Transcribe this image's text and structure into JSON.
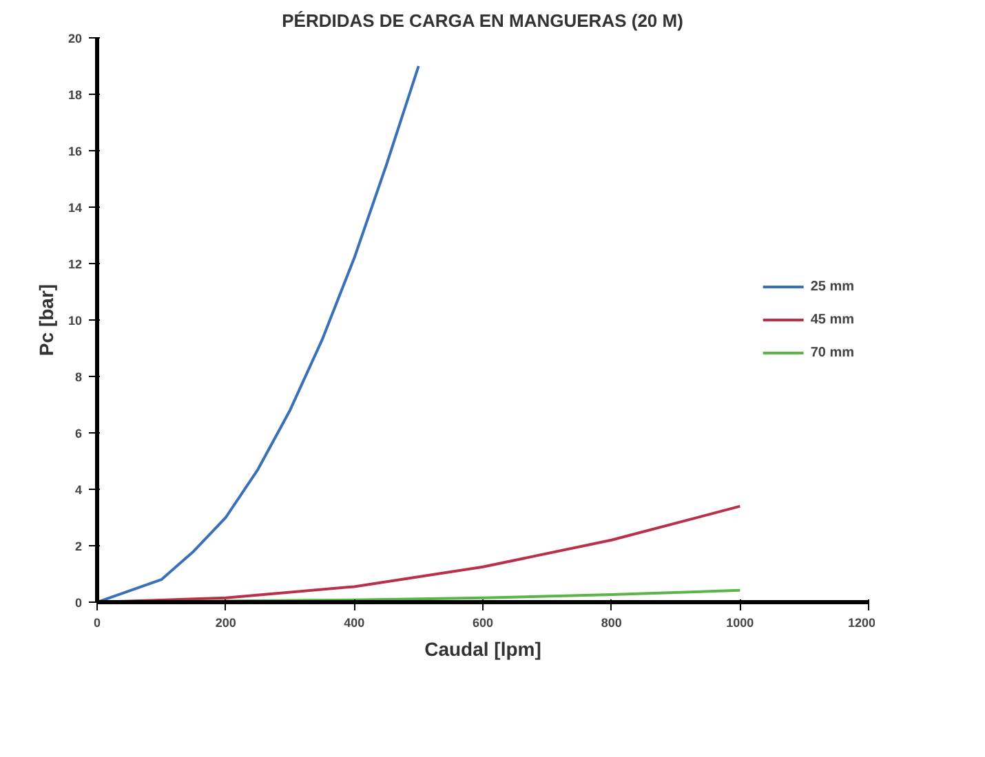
{
  "chart_data": {
    "type": "line",
    "title": "PÉRDIDAS DE CARGA EN MANGUERAS (20 M)",
    "xlabel": "Caudal [lpm]",
    "ylabel": "Pc [bar]",
    "xlim": [
      0,
      1200
    ],
    "xticks": [
      0,
      200,
      400,
      600,
      800,
      1000,
      1200
    ],
    "ylim": [
      0,
      20
    ],
    "yticks": [
      0,
      2,
      4,
      6,
      8,
      10,
      12,
      14,
      16,
      18,
      20
    ],
    "grid": false,
    "legend": "right",
    "marker": "none",
    "line_style": "solid",
    "series": [
      {
        "name": "25 mm",
        "color": "#3a70b8",
        "x": [
          0,
          50,
          100,
          150,
          200,
          250,
          300,
          350,
          400,
          450,
          500
        ],
        "values": [
          0,
          0.4,
          0.8,
          1.8,
          3.0,
          4.7,
          6.8,
          9.3,
          12.2,
          15.5,
          19.0
        ]
      },
      {
        "name": "45 mm",
        "color": "#b8304a",
        "x": [
          0,
          200,
          400,
          600,
          800,
          1000
        ],
        "values": [
          0,
          0.15,
          0.55,
          1.25,
          2.2,
          3.4
        ]
      },
      {
        "name": "70 mm",
        "color": "#5cb548",
        "x": [
          0,
          400,
          600,
          800,
          1000
        ],
        "values": [
          0,
          0.08,
          0.15,
          0.27,
          0.42
        ]
      }
    ]
  }
}
